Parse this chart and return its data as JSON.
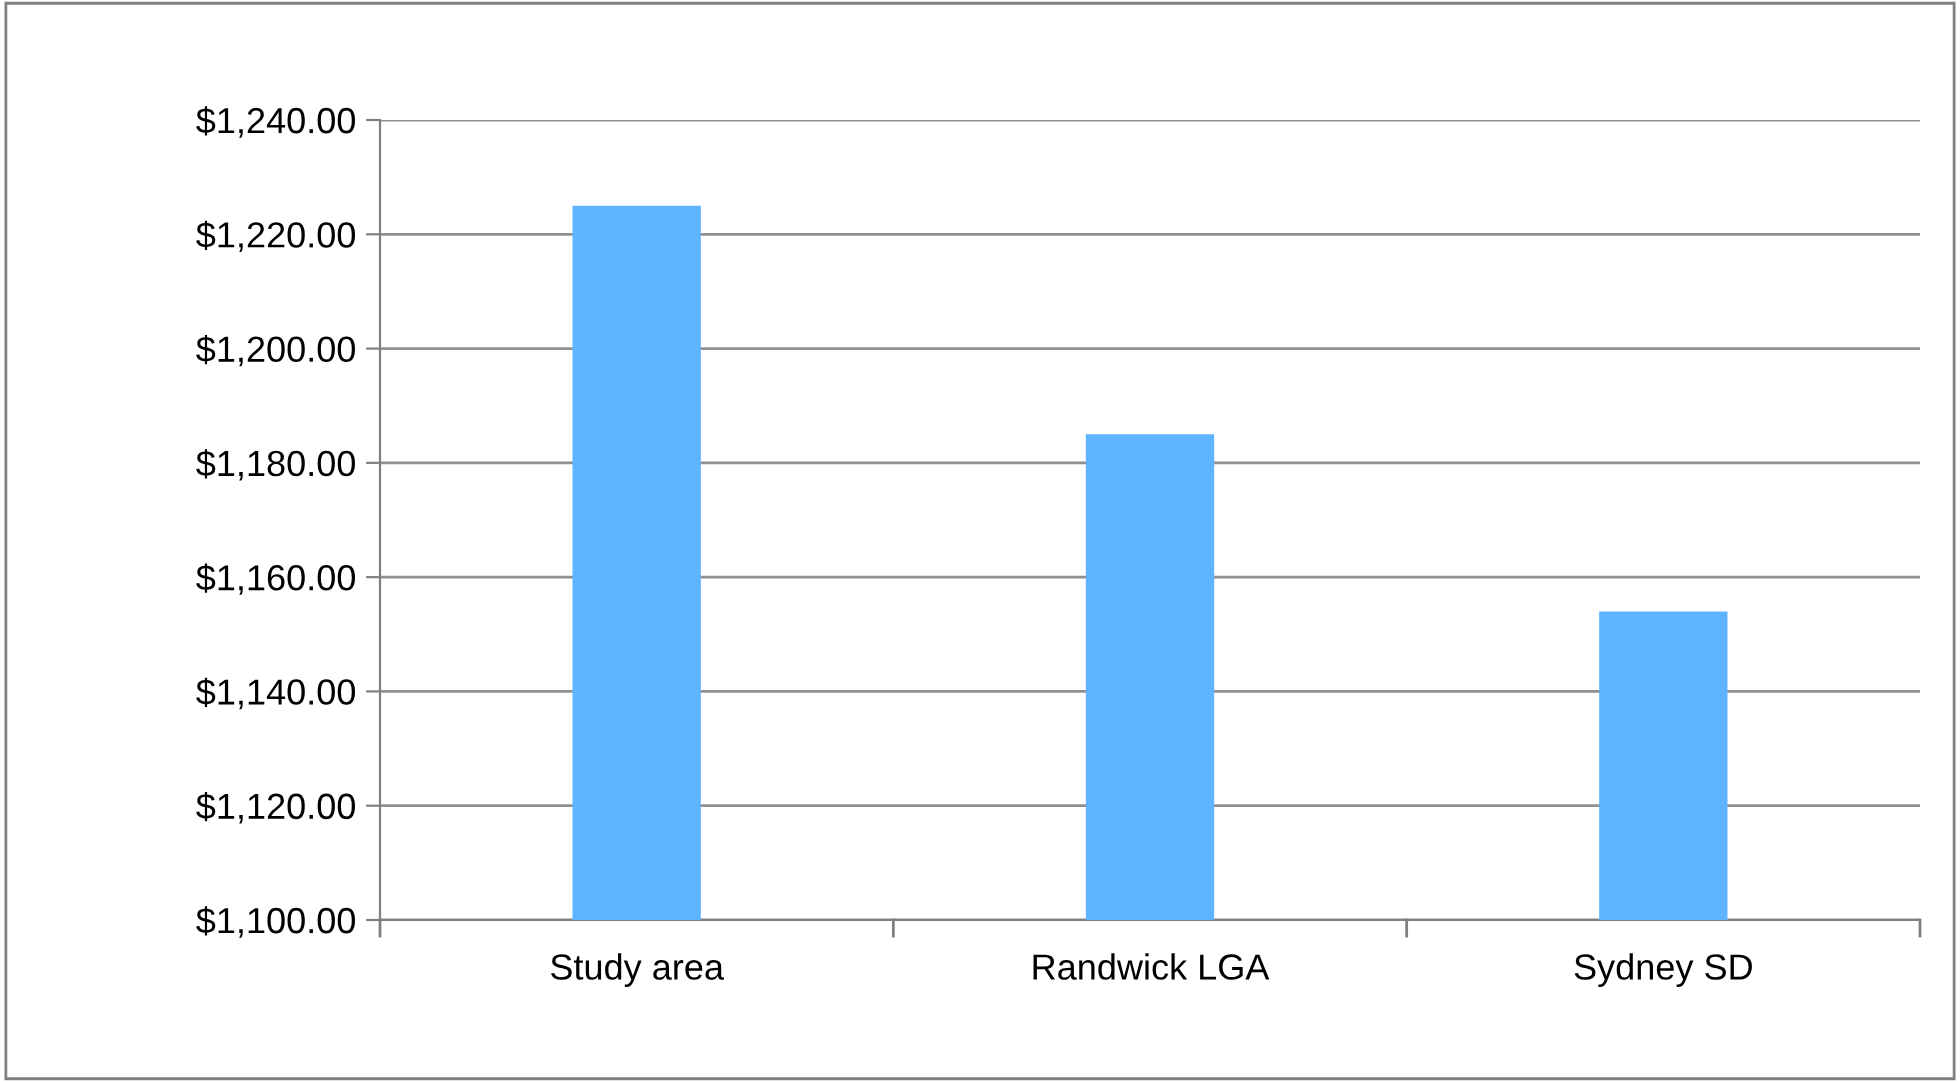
{
  "chart_data": {
    "type": "bar",
    "categories": [
      "Study area",
      "Randwick LGA",
      "Sydney SD"
    ],
    "values": [
      1225,
      1185,
      1154
    ],
    "color": "#5eb4ff",
    "ylim": [
      1100,
      1240
    ],
    "yticks": [
      {
        "value": 1100,
        "label": "$1,100.00"
      },
      {
        "value": 1120,
        "label": "$1,120.00"
      },
      {
        "value": 1140,
        "label": "$1,140.00"
      },
      {
        "value": 1160,
        "label": "$1,160.00"
      },
      {
        "value": 1180,
        "label": "$1,180.00"
      },
      {
        "value": 1200,
        "label": "$1,200.00"
      },
      {
        "value": 1220,
        "label": "$1,220.00"
      },
      {
        "value": 1240,
        "label": "$1,240.00"
      }
    ],
    "grid": "y",
    "legend": false
  }
}
